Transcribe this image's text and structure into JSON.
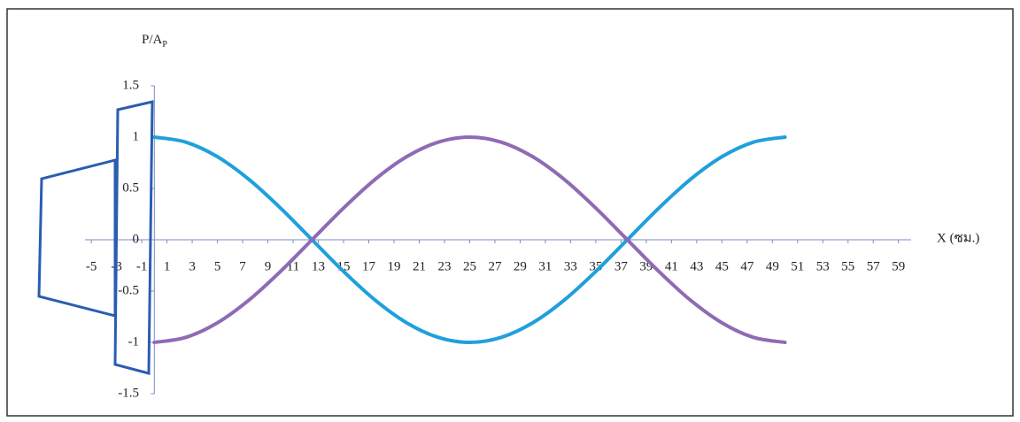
{
  "chart_data": {
    "type": "line",
    "ylabel": "P/A",
    "ylabel_subscript": "P",
    "xlabel": "X (ซม.)",
    "x": [
      0,
      2.5,
      5,
      7.5,
      10,
      12.5,
      15,
      17.5,
      20,
      22.5,
      25,
      27.5,
      30,
      32.5,
      35,
      37.5,
      40,
      42.5,
      45,
      47.5,
      50
    ],
    "series": [
      {
        "color": "#1fa0dc",
        "values": [
          1,
          0.951,
          0.809,
          0.588,
          0.309,
          0,
          -0.309,
          -0.588,
          -0.809,
          -0.951,
          -1,
          -0.951,
          -0.809,
          -0.588,
          -0.309,
          0,
          0.309,
          0.588,
          0.809,
          0.951,
          1
        ]
      },
      {
        "color": "#8e6bb4",
        "values": [
          -1,
          -0.951,
          -0.809,
          -0.588,
          -0.309,
          0,
          0.309,
          0.588,
          0.809,
          0.951,
          1,
          0.951,
          0.809,
          0.588,
          0.309,
          0,
          -0.309,
          -0.588,
          -0.809,
          -0.951,
          -1
        ]
      }
    ],
    "xlim": [
      -5.5,
      60
    ],
    "xticks": [
      -5,
      -3,
      -1,
      1,
      3,
      5,
      7,
      9,
      11,
      13,
      15,
      17,
      19,
      21,
      23,
      25,
      27,
      29,
      31,
      33,
      35,
      37,
      39,
      41,
      43,
      45,
      47,
      49,
      51,
      53,
      55,
      57,
      59
    ],
    "ylim": [
      -1.5,
      1.5
    ],
    "yticks": [
      -1.5,
      -1,
      -0.5,
      0,
      0.5,
      1,
      1.5
    ],
    "grid": false
  }
}
